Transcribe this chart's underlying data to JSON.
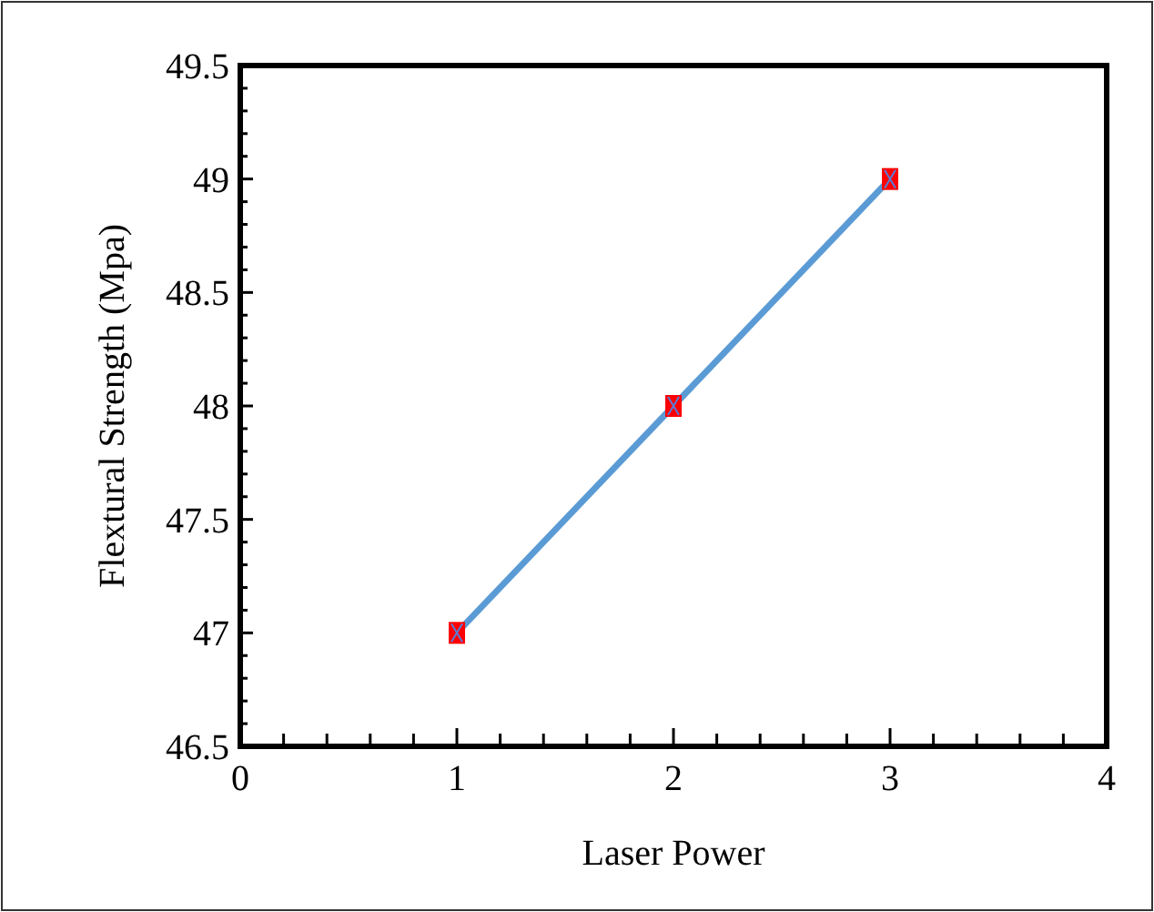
{
  "chart_data": {
    "type": "line",
    "xlabel": "Laser Power",
    "ylabel": "Flextural Strength (Mpa)",
    "x": [
      1,
      2,
      3
    ],
    "series": [
      {
        "color": "#5b9bd5",
        "values": [
          47,
          48,
          49
        ]
      }
    ],
    "marker": "square",
    "line_style": "solid",
    "grid": false,
    "xlim": [
      0,
      4
    ],
    "xticks": [
      0,
      {
        "value": 0.2,
        "label": null
      },
      {
        "value": 0.4,
        "label": null
      },
      {
        "value": 0.6,
        "label": null
      },
      {
        "value": 0.8,
        "label": null
      },
      1,
      {
        "value": 1.2,
        "label": null
      },
      {
        "value": 1.4,
        "label": null
      },
      {
        "value": 1.6,
        "label": null
      },
      {
        "value": 1.8,
        "label": null
      },
      2,
      {
        "value": 2.2,
        "label": null
      },
      {
        "value": 2.4,
        "label": null
      },
      {
        "value": 2.6,
        "label": null
      },
      {
        "value": 2.8,
        "label": null
      },
      3,
      {
        "value": 3.2,
        "label": null
      },
      {
        "value": 3.4,
        "label": null
      },
      {
        "value": 3.6,
        "label": null
      },
      {
        "value": 3.8,
        "label": null
      },
      4
    ],
    "ylim": [
      46.5,
      49.5
    ],
    "yticks": [
      46.5,
      {
        "value": 46.6,
        "label": null
      },
      {
        "value": 46.7,
        "label": null
      },
      {
        "value": 46.8,
        "label": null
      },
      {
        "value": 46.9,
        "label": null
      },
      47,
      {
        "value": 47.1,
        "label": null
      },
      {
        "value": 47.2,
        "label": null
      },
      {
        "value": 47.3,
        "label": null
      },
      {
        "value": 47.4,
        "label": null
      },
      47.5,
      {
        "value": 47.6,
        "label": null
      },
      {
        "value": 47.7,
        "label": null
      },
      {
        "value": 47.8,
        "label": null
      },
      {
        "value": 47.9,
        "label": null
      },
      48,
      {
        "value": 48.1,
        "label": null
      },
      {
        "value": 48.2,
        "label": null
      },
      {
        "value": 48.3,
        "label": null
      },
      {
        "value": 48.4,
        "label": null
      },
      48.5,
      {
        "value": 48.6,
        "label": null
      },
      {
        "value": 48.7,
        "label": null
      },
      {
        "value": 48.8,
        "label": null
      },
      {
        "value": 48.9,
        "label": null
      },
      49,
      {
        "value": 49.1,
        "label": null
      },
      {
        "value": 49.2,
        "label": null
      },
      {
        "value": 49.3,
        "label": null
      },
      {
        "value": 49.4,
        "label": null
      },
      49.5
    ]
  }
}
